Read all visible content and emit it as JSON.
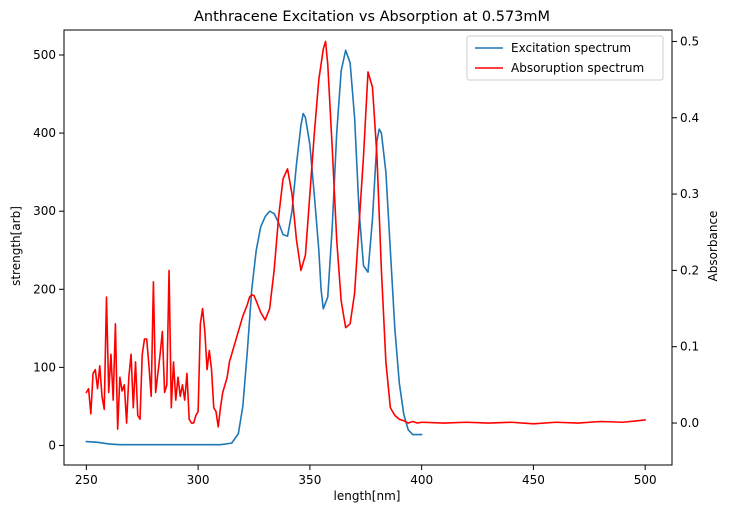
{
  "chart_data": {
    "type": "line",
    "title": "Anthracene Excitation vs Absorption at 0.573mM",
    "xlabel": "length[nm]",
    "ylabel_left": "strength[arb]",
    "ylabel_right": "Absorbance",
    "xlim": [
      240,
      512
    ],
    "ylim_left": [
      -25,
      532
    ],
    "ylim_right": [
      -0.055,
      0.515
    ],
    "xticks": [
      250,
      300,
      350,
      400,
      450,
      500
    ],
    "yticks_left": [
      0,
      100,
      200,
      300,
      400,
      500
    ],
    "yticks_right": [
      0.0,
      0.1,
      0.2,
      0.3,
      0.4,
      0.5
    ],
    "yticks_right_labels": [
      "0.0",
      "0.1",
      "0.2",
      "0.3",
      "0.4",
      "0.5"
    ],
    "legend_position": "top-right",
    "grid": false,
    "series": [
      {
        "name": "Excitation spectrum",
        "axis": "left",
        "color": "#1f77b4",
        "x": [
          250,
          255,
          260,
          265,
          270,
          275,
          280,
          285,
          290,
          295,
          300,
          305,
          310,
          315,
          318,
          320,
          322,
          324,
          326,
          328,
          330,
          332,
          334,
          336,
          338,
          340,
          342,
          344,
          346,
          347,
          348,
          350,
          352,
          354,
          355,
          356,
          358,
          360,
          362,
          364,
          366,
          368,
          370,
          372,
          374,
          376,
          378,
          380,
          381,
          382,
          384,
          386,
          388,
          390,
          392,
          394,
          396,
          398,
          400
        ],
        "values": [
          5,
          4,
          2,
          1,
          1,
          1,
          1,
          1,
          1,
          1,
          1,
          1,
          1,
          3,
          15,
          50,
          120,
          200,
          250,
          280,
          293,
          300,
          297,
          285,
          270,
          268,
          300,
          360,
          410,
          425,
          420,
          385,
          320,
          250,
          200,
          175,
          190,
          280,
          400,
          480,
          506,
          490,
          420,
          300,
          230,
          222,
          290,
          390,
          405,
          400,
          350,
          250,
          150,
          80,
          40,
          20,
          14,
          14,
          14
        ]
      },
      {
        "name": "Absoruption spectrum",
        "axis": "right",
        "color": "#ff0000",
        "x": [
          250,
          251,
          252,
          253,
          254,
          255,
          256,
          257,
          258,
          259,
          260,
          261,
          262,
          263,
          264,
          265,
          266,
          267,
          268,
          269,
          270,
          271,
          272,
          273,
          274,
          275,
          276,
          277,
          278,
          279,
          280,
          281,
          282,
          283,
          284,
          285,
          286,
          287,
          288,
          289,
          290,
          291,
          292,
          293,
          294,
          295,
          296,
          297,
          298,
          299,
          300,
          301,
          302,
          303,
          304,
          305,
          306,
          307,
          308,
          309,
          310,
          311,
          312,
          313,
          314,
          315,
          316,
          318,
          320,
          322,
          323,
          324,
          325,
          326,
          328,
          330,
          332,
          334,
          336,
          338,
          340,
          342,
          344,
          346,
          348,
          350,
          352,
          354,
          356,
          357,
          358,
          360,
          362,
          364,
          366,
          368,
          370,
          372,
          374,
          376,
          378,
          380,
          382,
          384,
          386,
          388,
          390,
          392,
          394,
          396,
          398,
          400,
          410,
          420,
          430,
          440,
          450,
          460,
          470,
          480,
          490,
          500
        ],
        "values": [
          0.04,
          0.045,
          0.012,
          0.065,
          0.07,
          0.045,
          0.075,
          0.035,
          0.018,
          0.165,
          0.04,
          0.09,
          0.03,
          0.13,
          -0.008,
          0.06,
          0.042,
          0.05,
          0.0,
          0.06,
          0.09,
          0.02,
          0.08,
          0.01,
          0.005,
          0.09,
          0.11,
          0.11,
          0.075,
          0.035,
          0.185,
          0.04,
          0.065,
          0.09,
          0.12,
          0.04,
          0.05,
          0.2,
          0.02,
          0.08,
          0.03,
          0.06,
          0.035,
          0.05,
          0.03,
          0.065,
          0.005,
          0.0,
          0.0,
          0.01,
          0.015,
          0.13,
          0.15,
          0.12,
          0.07,
          0.095,
          0.07,
          0.02,
          0.015,
          -0.005,
          0.02,
          0.04,
          0.05,
          0.06,
          0.08,
          0.09,
          0.1,
          0.12,
          0.14,
          0.155,
          0.165,
          0.168,
          0.167,
          0.16,
          0.145,
          0.135,
          0.15,
          0.2,
          0.27,
          0.32,
          0.333,
          0.3,
          0.24,
          0.2,
          0.22,
          0.3,
          0.38,
          0.45,
          0.49,
          0.5,
          0.47,
          0.36,
          0.24,
          0.16,
          0.125,
          0.13,
          0.17,
          0.26,
          0.35,
          0.46,
          0.44,
          0.35,
          0.2,
          0.08,
          0.02,
          0.01,
          0.005,
          0.003,
          0.0,
          0.002,
          0.0,
          0.001,
          0.0,
          0.001,
          0.0,
          0.001,
          -0.001,
          0.001,
          0.0,
          0.002,
          0.001,
          0.004
        ]
      }
    ]
  }
}
